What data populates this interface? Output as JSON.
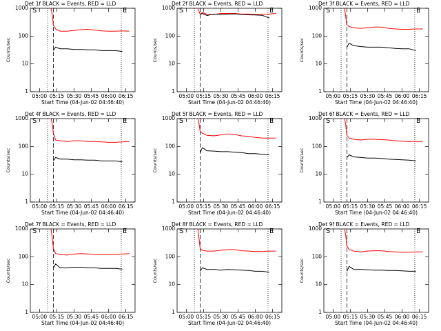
{
  "chart_data": [
    {
      "type": "line",
      "title": "Det 1f BLACK = Events, RED = LLD",
      "y_label": "Counts/sec",
      "x_label": "Start Time (04-Jun-02 04:46:40)",
      "log_y": true,
      "ylim": [
        1,
        1000
      ],
      "yticks": [
        1,
        10,
        100,
        1000
      ],
      "xlim": [
        "04:52",
        "06:23"
      ],
      "xticks": [
        "05:00",
        "05:15",
        "05:30",
        "05:45",
        "06:00",
        "06:15"
      ],
      "start_label": "S",
      "end_label": "E",
      "vlines": [
        {
          "x": "05:07",
          "style": "dotted"
        },
        {
          "x": "05:12",
          "style": "dashed"
        },
        {
          "x": "06:11",
          "style": "dotted"
        }
      ],
      "x": [
        "05:10",
        "05:11",
        "05:12",
        "05:14",
        "05:18",
        "05:24",
        "05:30",
        "05:36",
        "05:42",
        "05:48",
        "05:54",
        "06:00",
        "06:06",
        "06:12",
        "06:18"
      ],
      "series": [
        {
          "color": "#ff0000",
          "values": [
            1000,
            600,
            250,
            180,
            150,
            150,
            160,
            170,
            175,
            165,
            155,
            150,
            150,
            155,
            150
          ]
        },
        {
          "color": "#000000",
          "values": [
            null,
            null,
            30,
            40,
            35,
            35,
            33,
            33,
            32,
            32,
            30,
            30,
            30,
            28,
            null
          ]
        }
      ]
    },
    {
      "type": "line",
      "title": "Det 2f BLACK = Events, RED = LLD",
      "y_label": "Counts/sec",
      "x_label": "Start Time (04-Jun-02 04:46:40)",
      "log_y": true,
      "ylim": [
        1,
        1000
      ],
      "yticks": [
        1,
        10,
        100,
        1000
      ],
      "xlim": [
        "04:52",
        "06:23"
      ],
      "xticks": [
        "05:00",
        "05:15",
        "05:30",
        "05:45",
        "06:00",
        "06:15"
      ],
      "start_label": "S",
      "end_label": "E",
      "vlines": [
        {
          "x": "05:07",
          "style": "dotted"
        },
        {
          "x": "05:12",
          "style": "dashed"
        },
        {
          "x": "06:11",
          "style": "dotted"
        }
      ],
      "x": [
        "05:10",
        "05:11",
        "05:12",
        "05:14",
        "05:18",
        "05:24",
        "05:30",
        "05:36",
        "05:42",
        "05:48",
        "05:54",
        "06:00",
        "06:06",
        "06:12",
        "06:18"
      ],
      "series": [
        {
          "color": "#ff0000",
          "values": [
            1000,
            800,
            600,
            700,
            600,
            600,
            650,
            650,
            650,
            620,
            620,
            600,
            600,
            620,
            650
          ]
        },
        {
          "color": "#000000",
          "values": [
            null,
            null,
            600,
            650,
            550,
            620,
            600,
            620,
            630,
            600,
            580,
            570,
            560,
            450,
            null
          ]
        }
      ]
    },
    {
      "type": "line",
      "title": "Det 3f BLACK = Events, RED = LLD",
      "y_label": "Counts/sec",
      "x_label": "Start Time (04-Jun-02 04:46:40)",
      "log_y": true,
      "ylim": [
        1,
        1000
      ],
      "yticks": [
        1,
        10,
        100,
        1000
      ],
      "xlim": [
        "04:52",
        "06:23"
      ],
      "xticks": [
        "05:00",
        "05:15",
        "05:30",
        "05:45",
        "06:00",
        "06:15"
      ],
      "start_label": "S",
      "end_label": "E",
      "vlines": [
        {
          "x": "05:07",
          "style": "dotted"
        },
        {
          "x": "05:12",
          "style": "dashed"
        },
        {
          "x": "06:11",
          "style": "dotted"
        }
      ],
      "x": [
        "05:10",
        "05:11",
        "05:12",
        "05:14",
        "05:18",
        "05:24",
        "05:30",
        "05:36",
        "05:42",
        "05:48",
        "05:54",
        "06:00",
        "06:06",
        "06:12",
        "06:18"
      ],
      "series": [
        {
          "color": "#ff0000",
          "values": [
            1000,
            500,
            250,
            220,
            200,
            190,
            200,
            210,
            210,
            190,
            180,
            175,
            175,
            180,
            180
          ]
        },
        {
          "color": "#000000",
          "values": [
            null,
            null,
            40,
            55,
            45,
            42,
            40,
            40,
            40,
            38,
            36,
            35,
            35,
            30,
            null
          ]
        }
      ]
    },
    {
      "type": "line",
      "title": "Det 4f BLACK = Events, RED = LLD",
      "y_label": "Counts/sec",
      "x_label": "Start Time (04-Jun-02 04:46:40)",
      "log_y": true,
      "ylim": [
        1,
        1000
      ],
      "yticks": [
        1,
        10,
        100,
        1000
      ],
      "xlim": [
        "04:52",
        "06:23"
      ],
      "xticks": [
        "05:00",
        "05:15",
        "05:30",
        "05:45",
        "06:00",
        "06:15"
      ],
      "start_label": "S",
      "end_label": "E",
      "vlines": [
        {
          "x": "05:07",
          "style": "dotted"
        },
        {
          "x": "05:12",
          "style": "dashed"
        },
        {
          "x": "06:11",
          "style": "dotted"
        }
      ],
      "x": [
        "05:10",
        "05:11",
        "05:12",
        "05:14",
        "05:18",
        "05:24",
        "05:30",
        "05:36",
        "05:42",
        "05:48",
        "05:54",
        "06:00",
        "06:06",
        "06:12",
        "06:18"
      ],
      "series": [
        {
          "color": "#ff0000",
          "values": [
            1000,
            700,
            300,
            170,
            160,
            150,
            160,
            160,
            150,
            150,
            145,
            140,
            140,
            145,
            150
          ]
        },
        {
          "color": "#000000",
          "values": [
            null,
            null,
            30,
            40,
            35,
            35,
            33,
            33,
            32,
            32,
            30,
            30,
            30,
            28,
            null
          ]
        }
      ]
    },
    {
      "type": "line",
      "title": "Det 5f BLACK = Events, RED = LLD",
      "y_label": "Counts/sec",
      "x_label": "Start Time (04-Jun-02 04:46:40)",
      "log_y": true,
      "ylim": [
        1,
        1000
      ],
      "yticks": [
        1,
        10,
        100,
        1000
      ],
      "xlim": [
        "04:52",
        "06:23"
      ],
      "xticks": [
        "05:00",
        "05:15",
        "05:30",
        "05:45",
        "06:00",
        "06:15"
      ],
      "start_label": "S",
      "end_label": "E",
      "vlines": [
        {
          "x": "05:07",
          "style": "dotted"
        },
        {
          "x": "05:12",
          "style": "dashed"
        },
        {
          "x": "06:11",
          "style": "dotted"
        }
      ],
      "x": [
        "05:10",
        "05:11",
        "05:12",
        "05:14",
        "05:18",
        "05:24",
        "05:30",
        "05:36",
        "05:42",
        "05:48",
        "05:54",
        "06:00",
        "06:06",
        "06:12",
        "06:18"
      ],
      "series": [
        {
          "color": "#ff0000",
          "values": [
            1000,
            700,
            350,
            300,
            250,
            240,
            260,
            280,
            270,
            240,
            230,
            210,
            200,
            200,
            200
          ]
        },
        {
          "color": "#000000",
          "values": [
            null,
            null,
            60,
            90,
            70,
            68,
            65,
            65,
            62,
            60,
            55,
            55,
            52,
            50,
            null
          ]
        }
      ]
    },
    {
      "type": "line",
      "title": "Det 6f BLACK = Events, RED = LLD",
      "y_label": "Counts/sec",
      "x_label": "Start Time (04-Jun-02 04:46:40)",
      "log_y": true,
      "ylim": [
        1,
        1000
      ],
      "yticks": [
        1,
        10,
        100,
        1000
      ],
      "xlim": [
        "04:52",
        "06:23"
      ],
      "xticks": [
        "05:00",
        "05:15",
        "05:30",
        "05:45",
        "06:00",
        "06:15"
      ],
      "start_label": "S",
      "end_label": "E",
      "vlines": [
        {
          "x": "05:07",
          "style": "dotted"
        },
        {
          "x": "05:12",
          "style": "dashed"
        },
        {
          "x": "06:11",
          "style": "dotted"
        }
      ],
      "x": [
        "05:10",
        "05:11",
        "05:12",
        "05:14",
        "05:18",
        "05:24",
        "05:30",
        "05:36",
        "05:42",
        "05:48",
        "05:54",
        "06:00",
        "06:06",
        "06:12",
        "06:18"
      ],
      "series": [
        {
          "color": "#ff0000",
          "values": [
            1000,
            600,
            250,
            200,
            180,
            170,
            180,
            180,
            175,
            170,
            160,
            155,
            150,
            150,
            150
          ]
        },
        {
          "color": "#000000",
          "values": [
            null,
            null,
            40,
            50,
            42,
            40,
            38,
            38,
            37,
            35,
            34,
            33,
            32,
            30,
            null
          ]
        }
      ]
    },
    {
      "type": "line",
      "title": "Det 7f BLACK = Events, RED = LLD",
      "y_label": "Counts/sec",
      "x_label": "Start Time (04-Jun-02 04:46:40)",
      "log_y": true,
      "ylim": [
        1,
        1000
      ],
      "yticks": [
        1,
        10,
        100,
        1000
      ],
      "xlim": [
        "04:52",
        "06:23"
      ],
      "xticks": [
        "05:00",
        "05:15",
        "05:30",
        "05:45",
        "06:00",
        "06:15"
      ],
      "start_label": "S",
      "end_label": "E",
      "vlines": [
        {
          "x": "05:07",
          "style": "dotted"
        },
        {
          "x": "05:12",
          "style": "dashed"
        },
        {
          "x": "06:11",
          "style": "dotted"
        }
      ],
      "x": [
        "05:10",
        "05:11",
        "05:12",
        "05:14",
        "05:18",
        "05:24",
        "05:30",
        "05:36",
        "05:42",
        "05:48",
        "05:54",
        "06:00",
        "06:06",
        "06:12",
        "06:18"
      ],
      "series": [
        {
          "color": "#ff0000",
          "values": [
            1000,
            500,
            200,
            130,
            120,
            115,
            125,
            130,
            125,
            120,
            120,
            120,
            120,
            125,
            130
          ]
        },
        {
          "color": "#000000",
          "values": [
            null,
            null,
            40,
            55,
            40,
            40,
            42,
            42,
            40,
            40,
            38,
            38,
            38,
            36,
            null
          ]
        }
      ]
    },
    {
      "type": "line",
      "title": "Det 8f BLACK = Events, RED = LLD",
      "y_label": "Counts/sec",
      "x_label": "Start Time (04-Jun-02 04:46:40)",
      "log_y": true,
      "ylim": [
        1,
        1000
      ],
      "yticks": [
        1,
        10,
        100,
        1000
      ],
      "xlim": [
        "04:52",
        "06:23"
      ],
      "xticks": [
        "05:00",
        "05:15",
        "05:30",
        "05:45",
        "06:00",
        "06:15"
      ],
      "start_label": "S",
      "end_label": "E",
      "vlines": [
        {
          "x": "05:07",
          "style": "dotted"
        },
        {
          "x": "05:12",
          "style": "dashed"
        },
        {
          "x": "06:11",
          "style": "dotted"
        }
      ],
      "x": [
        "05:10",
        "05:11",
        "05:12",
        "05:14",
        "05:18",
        "05:24",
        "05:30",
        "05:36",
        "05:42",
        "05:48",
        "05:54",
        "06:00",
        "06:06",
        "06:12",
        "06:18"
      ],
      "series": [
        {
          "color": "#ff0000",
          "values": [
            1000,
            500,
            200,
            170,
            160,
            160,
            170,
            180,
            180,
            165,
            160,
            155,
            155,
            160,
            160
          ]
        },
        {
          "color": "#000000",
          "values": [
            null,
            null,
            30,
            40,
            35,
            35,
            33,
            35,
            34,
            33,
            32,
            30,
            30,
            28,
            null
          ]
        }
      ]
    },
    {
      "type": "line",
      "title": "Det 9f BLACK = Events, RED = LLD",
      "y_label": "Counts/sec",
      "x_label": "Start Time (04-Jun-02 04:46:40)",
      "log_y": true,
      "ylim": [
        1,
        1000
      ],
      "yticks": [
        1,
        10,
        100,
        1000
      ],
      "xlim": [
        "04:52",
        "06:23"
      ],
      "xticks": [
        "05:00",
        "05:15",
        "05:30",
        "05:45",
        "06:00",
        "06:15"
      ],
      "start_label": "S",
      "end_label": "E",
      "vlines": [
        {
          "x": "05:07",
          "style": "dotted"
        },
        {
          "x": "05:12",
          "style": "dashed"
        },
        {
          "x": "06:11",
          "style": "dotted"
        }
      ],
      "x": [
        "05:10",
        "05:11",
        "05:12",
        "05:14",
        "05:18",
        "05:24",
        "05:30",
        "05:36",
        "05:42",
        "05:48",
        "05:54",
        "06:00",
        "06:06",
        "06:12",
        "06:18"
      ],
      "series": [
        {
          "color": "#ff0000",
          "values": [
            1000,
            600,
            250,
            180,
            160,
            150,
            160,
            165,
            165,
            155,
            150,
            145,
            145,
            150,
            150
          ]
        },
        {
          "color": "#000000",
          "values": [
            null,
            null,
            30,
            45,
            35,
            35,
            34,
            33,
            33,
            32,
            32,
            31,
            30,
            30,
            null
          ]
        }
      ]
    }
  ]
}
